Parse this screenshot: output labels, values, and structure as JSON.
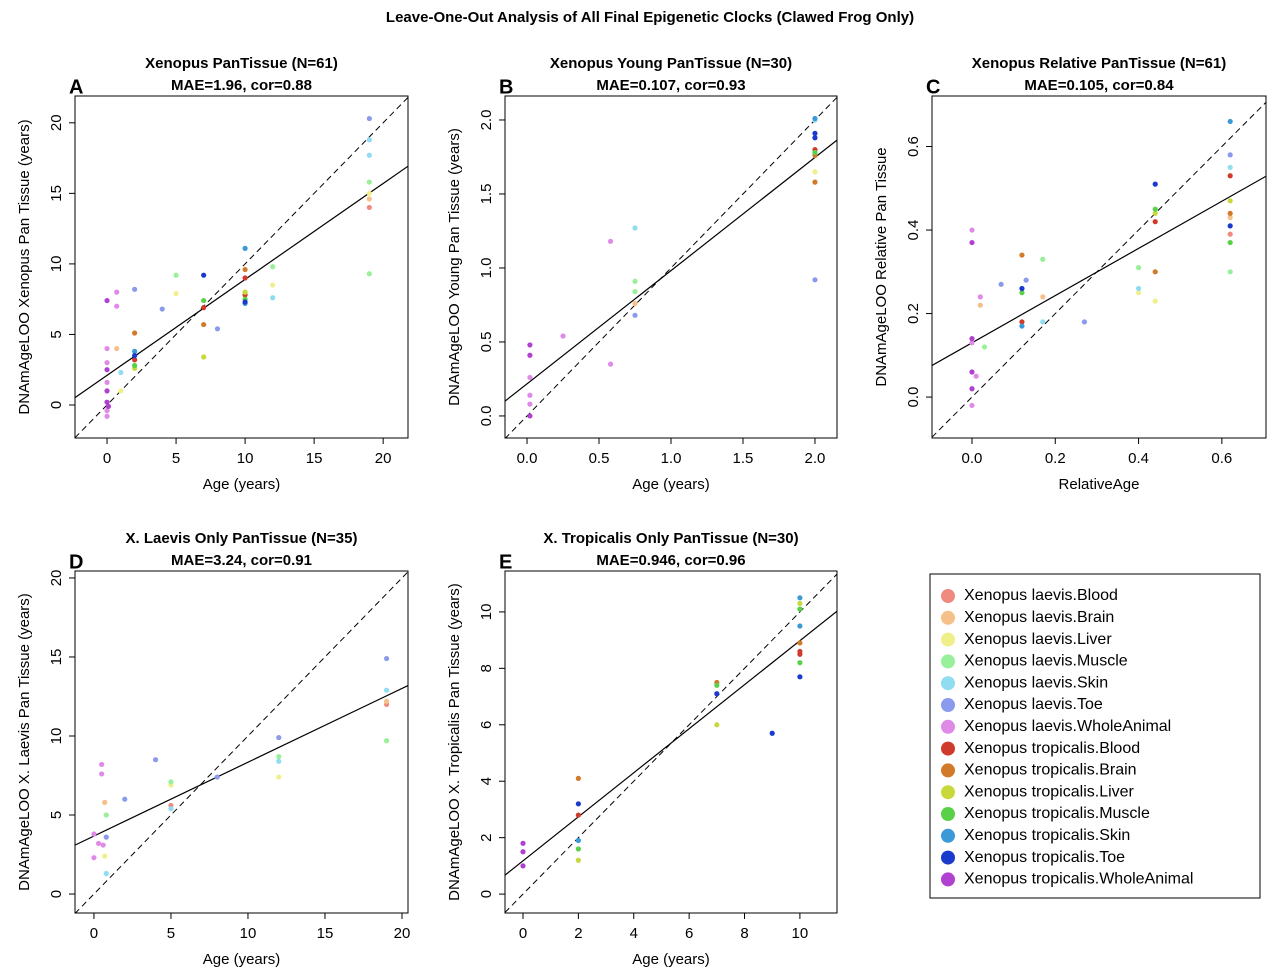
{
  "title": "Leave-One-Out Analysis of All Final Epigenetic Clocks (Clawed Frog Only)",
  "legend": [
    {
      "name": "Xenopus laevis.Blood",
      "color": "#ee8a7e"
    },
    {
      "name": "Xenopus laevis.Brain",
      "color": "#f5c08a"
    },
    {
      "name": "Xenopus laevis.Liver",
      "color": "#f0f08a"
    },
    {
      "name": "Xenopus laevis.Muscle",
      "color": "#98f09a"
    },
    {
      "name": "Xenopus laevis.Skin",
      "color": "#90dcf0"
    },
    {
      "name": "Xenopus laevis.Toe",
      "color": "#8a9aec"
    },
    {
      "name": "Xenopus laevis.WholeAnimal",
      "color": "#e08ae8"
    },
    {
      "name": "Xenopus tropicalis.Blood",
      "color": "#d03a2a"
    },
    {
      "name": "Xenopus tropicalis.Brain",
      "color": "#d07a2a"
    },
    {
      "name": "Xenopus tropicalis.Liver",
      "color": "#c8d83a"
    },
    {
      "name": "Xenopus tropicalis.Muscle",
      "color": "#58d048"
    },
    {
      "name": "Xenopus tropicalis.Skin",
      "color": "#3a9ad8"
    },
    {
      "name": "Xenopus tropicalis.Toe",
      "color": "#1a3acc"
    },
    {
      "name": "Xenopus tropicalis.WholeAnimal",
      "color": "#b040d0"
    }
  ],
  "chart_data": [
    {
      "type": "scatter",
      "letter": "A",
      "title": "Xenopus PanTissue (N=61)",
      "subtitle": "MAE=1.96, cor=0.88",
      "x_label": "Age (years)",
      "y_label": "DNAmAgeLOO Xenopus Pan Tissue (years)",
      "xlim": [
        -2.32,
        21.8
      ],
      "ylim": [
        -2.34,
        21.9
      ],
      "xticks": [
        0,
        5,
        10,
        15,
        20
      ],
      "yticks": [
        0,
        5,
        10,
        15,
        20
      ],
      "fit": {
        "intercept": 2.1,
        "slope": 0.68
      },
      "identity_line": true,
      "series": [
        {
          "color": "#ee8a7e",
          "x": [
            19
          ],
          "values": [
            14.0
          ]
        },
        {
          "color": "#f5c08a",
          "x": [
            0.7,
            19
          ],
          "values": [
            4.0,
            14.6
          ]
        },
        {
          "color": "#f0f08a",
          "x": [
            5,
            12,
            19,
            1
          ],
          "values": [
            7.9,
            8.5,
            15.0,
            1.0
          ]
        },
        {
          "color": "#98f09a",
          "x": [
            5,
            12,
            19,
            19
          ],
          "values": [
            9.2,
            9.8,
            15.8,
            9.3
          ]
        },
        {
          "color": "#90dcf0",
          "x": [
            1,
            12,
            19,
            19
          ],
          "values": [
            2.3,
            7.6,
            17.7,
            18.8
          ]
        },
        {
          "color": "#8a9aec",
          "x": [
            2,
            4,
            8,
            19
          ],
          "values": [
            8.2,
            6.8,
            5.4,
            20.3
          ]
        },
        {
          "color": "#e08ae8",
          "x": [
            0,
            0,
            0,
            0.7,
            0.7,
            0,
            0
          ],
          "values": [
            4.0,
            -0.8,
            3.0,
            8.0,
            7.0,
            1.6,
            -0.4
          ]
        },
        {
          "color": "#d03a2a",
          "x": [
            2,
            7,
            10,
            10
          ],
          "values": [
            3.2,
            6.9,
            9.0,
            7.8
          ]
        },
        {
          "color": "#d07a2a",
          "x": [
            2,
            7,
            10
          ],
          "values": [
            5.1,
            5.7,
            9.6
          ]
        },
        {
          "color": "#c8d83a",
          "x": [
            2,
            7,
            10
          ],
          "values": [
            2.6,
            3.4,
            8.0
          ]
        },
        {
          "color": "#58d048",
          "x": [
            2,
            7,
            10
          ],
          "values": [
            2.8,
            7.4,
            7.5
          ]
        },
        {
          "color": "#3a9ad8",
          "x": [
            2,
            10,
            10
          ],
          "values": [
            3.8,
            11.1,
            7.2
          ]
        },
        {
          "color": "#1a3acc",
          "x": [
            2,
            7,
            10
          ],
          "values": [
            3.5,
            9.2,
            7.3
          ]
        },
        {
          "color": "#b040d0",
          "x": [
            0,
            0,
            0,
            0,
            0.1
          ],
          "values": [
            7.4,
            2.5,
            1.0,
            0.2,
            -0.1
          ]
        }
      ]
    },
    {
      "type": "scatter",
      "letter": "B",
      "title": "Xenopus Young PanTissue (N=30)",
      "subtitle": "MAE=0.107, cor=0.93",
      "x_label": "Age (years)",
      "y_label": "DNAmAgeLOO Young Pan Tissue (years)",
      "xlim": [
        -0.153,
        2.153
      ],
      "ylim": [
        -0.149,
        2.162
      ],
      "xticks": [
        {
          "value": 0,
          "label": "0.0"
        },
        0.5,
        {
          "value": 1,
          "label": "1.0"
        },
        1.5,
        {
          "value": 2,
          "label": "2.0"
        }
      ],
      "yticks": [
        {
          "value": 0,
          "label": "0.0"
        },
        0.5,
        {
          "value": 1,
          "label": "1.0"
        },
        1.5,
        {
          "value": 2,
          "label": "2.0"
        }
      ],
      "fit": {
        "intercept": 0.217,
        "slope": 0.765
      },
      "identity_line": true,
      "series": [
        {
          "color": "#f5c08a",
          "x": [
            0.75
          ],
          "values": [
            0.76
          ]
        },
        {
          "color": "#f0f08a",
          "x": [
            2
          ],
          "values": [
            1.65
          ]
        },
        {
          "color": "#98f09a",
          "x": [
            0.75,
            0.75,
            2
          ],
          "values": [
            0.91,
            0.84,
            1.78
          ]
        },
        {
          "color": "#90dcf0",
          "x": [
            0.75,
            2
          ],
          "values": [
            1.27,
            2.0
          ]
        },
        {
          "color": "#8a9aec",
          "x": [
            0.75,
            2
          ],
          "values": [
            0.68,
            0.92
          ]
        },
        {
          "color": "#e08ae8",
          "x": [
            0.02,
            0.02,
            0.25,
            0.58,
            0.58,
            0.02
          ],
          "values": [
            0.14,
            0.08,
            0.54,
            1.18,
            0.35,
            0.26
          ]
        },
        {
          "color": "#d03a2a",
          "x": [
            2
          ],
          "values": [
            1.8
          ]
        },
        {
          "color": "#d07a2a",
          "x": [
            2,
            2
          ],
          "values": [
            1.58,
            1.76
          ]
        },
        {
          "color": "#58d048",
          "x": [
            2
          ],
          "values": [
            1.78
          ]
        },
        {
          "color": "#3a9ad8",
          "x": [
            2
          ],
          "values": [
            2.01
          ]
        },
        {
          "color": "#1a3acc",
          "x": [
            2,
            2
          ],
          "values": [
            1.91,
            1.88
          ]
        },
        {
          "color": "#b040d0",
          "x": [
            0.02,
            0.02,
            0.02
          ],
          "values": [
            0.48,
            0.41,
            0.0
          ]
        }
      ]
    },
    {
      "type": "scatter",
      "letter": "C",
      "title": "Xenopus Relative PanTissue (N=61)",
      "subtitle": "MAE=0.105, cor=0.84",
      "x_label": "RelativeAge",
      "y_label": "DNAmAgeLOO Relative Pan Tissue",
      "xlim": [
        -0.096,
        0.706
      ],
      "ylim": [
        -0.098,
        0.721
      ],
      "xticks": [
        {
          "value": 0,
          "label": "0.0"
        },
        0.2,
        0.4,
        0.6
      ],
      "yticks": [
        {
          "value": 0,
          "label": "0.0"
        },
        0.2,
        0.4,
        0.6
      ],
      "fit": {
        "intercept": 0.13,
        "slope": 0.565
      },
      "identity_line": true,
      "series": [
        {
          "color": "#ee8a7e",
          "x": [
            0.62
          ],
          "values": [
            0.39
          ]
        },
        {
          "color": "#f5c08a",
          "x": [
            0.62,
            0.02,
            0.17
          ],
          "values": [
            0.43,
            0.22,
            0.24
          ]
        },
        {
          "color": "#f0f08a",
          "x": [
            0.44,
            0.4
          ],
          "values": [
            0.23,
            0.25
          ]
        },
        {
          "color": "#98f09a",
          "x": [
            0.62,
            0.4,
            0.17,
            0.03
          ],
          "values": [
            0.3,
            0.31,
            0.33,
            0.12
          ]
        },
        {
          "color": "#90dcf0",
          "x": [
            0.62,
            0.4,
            0.17
          ],
          "values": [
            0.55,
            0.26,
            0.18
          ]
        },
        {
          "color": "#8a9aec",
          "x": [
            0.62,
            0.27,
            0.07,
            0.13
          ],
          "values": [
            0.58,
            0.18,
            0.27,
            0.28
          ]
        },
        {
          "color": "#e08ae8",
          "x": [
            0,
            0.02,
            0,
            0,
            0.01
          ],
          "values": [
            0.4,
            0.24,
            0.13,
            -0.02,
            0.05
          ]
        },
        {
          "color": "#d03a2a",
          "x": [
            0.62,
            0.44,
            0.12
          ],
          "values": [
            0.53,
            0.42,
            0.18
          ]
        },
        {
          "color": "#d07a2a",
          "x": [
            0.62,
            0.44,
            0.12
          ],
          "values": [
            0.44,
            0.3,
            0.34
          ]
        },
        {
          "color": "#c8d83a",
          "x": [
            0.62,
            0.44
          ],
          "values": [
            0.47,
            0.44
          ]
        },
        {
          "color": "#58d048",
          "x": [
            0.62,
            0.44,
            0.12
          ],
          "values": [
            0.37,
            0.45,
            0.25
          ]
        },
        {
          "color": "#3a9ad8",
          "x": [
            0.62,
            0.12
          ],
          "values": [
            0.66,
            0.17
          ]
        },
        {
          "color": "#1a3acc",
          "x": [
            0.62,
            0.44,
            0.12
          ],
          "values": [
            0.41,
            0.51,
            0.26
          ]
        },
        {
          "color": "#b040d0",
          "x": [
            0,
            0,
            0,
            0
          ],
          "values": [
            0.37,
            0.14,
            0.06,
            0.02
          ]
        }
      ]
    },
    {
      "type": "scatter",
      "letter": "D",
      "title": "X. Laevis Only PanTissue (N=35)",
      "subtitle": "MAE=3.24, cor=0.91",
      "x_label": "Age (years)",
      "y_label": "DNAmAgeLOO X. Laevis Pan Tissue (years)",
      "xlim": [
        -1.23,
        20.39
      ],
      "ylim": [
        -1.2,
        20.44
      ],
      "xticks": [
        0,
        5,
        10,
        15,
        20
      ],
      "yticks": [
        0,
        5,
        10,
        15,
        20
      ],
      "fit": {
        "intercept": 3.67,
        "slope": 0.467
      },
      "identity_line": true,
      "series": [
        {
          "color": "#ee8a7e",
          "x": [
            5,
            19
          ],
          "values": [
            5.6,
            12.0
          ]
        },
        {
          "color": "#f5c08a",
          "x": [
            0.7,
            19
          ],
          "values": [
            5.8,
            12.2
          ]
        },
        {
          "color": "#f0f08a",
          "x": [
            12,
            0.7,
            5
          ],
          "values": [
            7.4,
            2.4,
            6.9
          ]
        },
        {
          "color": "#98f09a",
          "x": [
            5,
            19,
            12,
            0.8
          ],
          "values": [
            7.1,
            9.7,
            8.7,
            5.0
          ]
        },
        {
          "color": "#90dcf0",
          "x": [
            0.8,
            12,
            19,
            5
          ],
          "values": [
            1.3,
            8.4,
            12.9,
            5.4
          ]
        },
        {
          "color": "#8a9aec",
          "x": [
            2,
            4,
            8,
            12,
            19,
            0.8
          ],
          "values": [
            6.0,
            8.5,
            7.4,
            9.9,
            14.9,
            3.6
          ]
        },
        {
          "color": "#e08ae8",
          "x": [
            0.5,
            0.5,
            0,
            0,
            0.3,
            0.6
          ],
          "values": [
            8.2,
            7.6,
            3.8,
            2.3,
            3.2,
            3.1
          ]
        }
      ]
    },
    {
      "type": "scatter",
      "letter": "E",
      "title": "X. Tropicalis Only PanTissue (N=30)",
      "subtitle": "MAE=0.946, cor=0.96",
      "x_label": "Age (years)",
      "y_label": "DNAmAgeLOO X. Tropicalis Pan Tissue (years)",
      "xlim": [
        -0.65,
        11.34
      ],
      "ylim": [
        -0.67,
        11.45
      ],
      "xticks": [
        0,
        2,
        4,
        6,
        8,
        10
      ],
      "yticks": [
        0,
        2,
        4,
        6,
        8,
        10
      ],
      "fit": {
        "intercept": 1.18,
        "slope": 0.78
      },
      "identity_line": true,
      "series": [
        {
          "color": "#d03a2a",
          "x": [
            10,
            10,
            2
          ],
          "values": [
            8.6,
            8.5,
            2.8
          ]
        },
        {
          "color": "#d07a2a",
          "x": [
            2,
            7,
            10
          ],
          "values": [
            4.1,
            7.5,
            8.9
          ]
        },
        {
          "color": "#c8d83a",
          "x": [
            2,
            7,
            10
          ],
          "values": [
            1.2,
            6.0,
            10.3
          ]
        },
        {
          "color": "#58d048",
          "x": [
            2,
            7,
            10,
            10
          ],
          "values": [
            1.6,
            7.4,
            8.2,
            10.1
          ]
        },
        {
          "color": "#3a9ad8",
          "x": [
            2,
            10,
            10
          ],
          "values": [
            1.9,
            10.5,
            9.5
          ]
        },
        {
          "color": "#1a3acc",
          "x": [
            2,
            7,
            9,
            10
          ],
          "values": [
            3.2,
            7.1,
            5.7,
            7.7
          ]
        },
        {
          "color": "#b040d0",
          "x": [
            0,
            0,
            0
          ],
          "values": [
            1.8,
            1.5,
            1.0
          ]
        }
      ]
    }
  ]
}
